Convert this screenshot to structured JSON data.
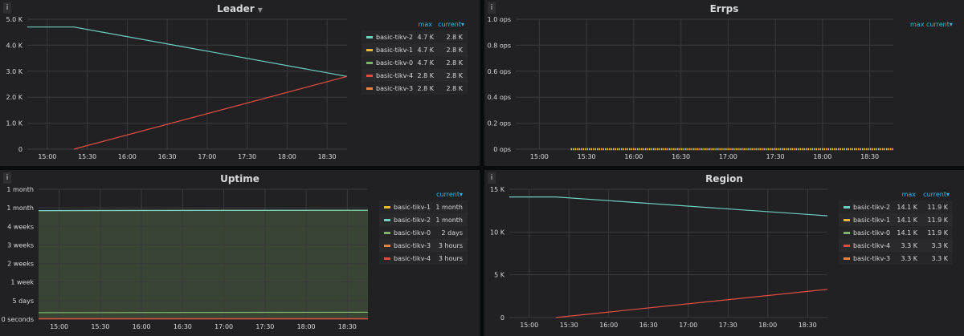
{
  "colors": {
    "tikv2": "#6ed0c0",
    "tikv1": "#eab839",
    "tikv0": "#7eb26d",
    "tikv4": "#e24d42",
    "tikv3": "#ef843c"
  },
  "legend_headers": {
    "max": "max",
    "current": "current▾"
  },
  "panels": {
    "leader": {
      "title": "Leader",
      "legend": [
        {
          "name": "basic-tikv-2",
          "max": "4.7 K",
          "current": "2.8 K",
          "color": "#6ed0c0"
        },
        {
          "name": "basic-tikv-1",
          "max": "4.7 K",
          "current": "2.8 K",
          "color": "#eab839"
        },
        {
          "name": "basic-tikv-0",
          "max": "4.7 K",
          "current": "2.8 K",
          "color": "#7eb26d"
        },
        {
          "name": "basic-tikv-4",
          "max": "2.8 K",
          "current": "2.8 K",
          "color": "#e24d42"
        },
        {
          "name": "basic-tikv-3",
          "max": "2.8 K",
          "current": "2.8 K",
          "color": "#ef843c"
        }
      ]
    },
    "errps": {
      "title": "Errps"
    },
    "uptime": {
      "title": "Uptime",
      "legend": [
        {
          "name": "basic-tikv-1",
          "current": "1 month",
          "color": "#eab839"
        },
        {
          "name": "basic-tikv-2",
          "current": "1 month",
          "color": "#6ed0c0"
        },
        {
          "name": "basic-tikv-0",
          "current": "2 days",
          "color": "#7eb26d"
        },
        {
          "name": "basic-tikv-3",
          "current": "3 hours",
          "color": "#ef843c"
        },
        {
          "name": "basic-tikv-4",
          "current": "3 hours",
          "color": "#e24d42"
        }
      ]
    },
    "region": {
      "title": "Region",
      "legend": [
        {
          "name": "basic-tikv-2",
          "max": "14.1 K",
          "current": "11.9 K",
          "color": "#6ed0c0"
        },
        {
          "name": "basic-tikv-1",
          "max": "14.1 K",
          "current": "11.9 K",
          "color": "#eab839"
        },
        {
          "name": "basic-tikv-0",
          "max": "14.1 K",
          "current": "11.9 K",
          "color": "#7eb26d"
        },
        {
          "name": "basic-tikv-4",
          "max": "3.3 K",
          "current": "3.3 K",
          "color": "#e24d42"
        },
        {
          "name": "basic-tikv-3",
          "max": "3.3 K",
          "current": "3.3 K",
          "color": "#ef843c"
        }
      ]
    }
  },
  "chart_data": [
    {
      "id": "leader",
      "type": "line",
      "title": "Leader",
      "x_ticks": [
        "15:00",
        "15:30",
        "16:00",
        "16:30",
        "17:00",
        "17:30",
        "18:00",
        "18:30"
      ],
      "x_range": [
        "14:45",
        "18:45"
      ],
      "y_ticks": [
        "0",
        "1.0 K",
        "2.0 K",
        "3.0 K",
        "4.0 K",
        "5.0 K"
      ],
      "ylim": [
        0,
        5000
      ],
      "series": [
        {
          "name": "basic-tikv-2",
          "color": "#6ed0c0",
          "points": [
            [
              "14:45",
              4700
            ],
            [
              "15:20",
              4700
            ],
            [
              "18:45",
              2800
            ]
          ]
        },
        {
          "name": "basic-tikv-4",
          "color": "#e24d42",
          "points": [
            [
              "15:20",
              0
            ],
            [
              "18:45",
              2800
            ]
          ]
        }
      ]
    },
    {
      "id": "errps",
      "type": "line",
      "title": "Errps",
      "x_ticks": [
        "15:00",
        "15:30",
        "16:00",
        "16:30",
        "17:00",
        "17:30",
        "18:00",
        "18:30"
      ],
      "x_range": [
        "14:45",
        "18:45"
      ],
      "y_ticks": [
        "0 ops",
        "0.2 ops",
        "0.4 ops",
        "0.6 ops",
        "0.8 ops",
        "1.0 ops"
      ],
      "ylim": [
        0,
        1
      ],
      "series": [
        {
          "name": "basic-tikv-1",
          "color": "#eab839",
          "points": [
            [
              "15:20",
              0
            ],
            [
              "18:45",
              0
            ]
          ]
        }
      ]
    },
    {
      "id": "uptime",
      "type": "area",
      "title": "Uptime",
      "x_ticks": [
        "15:00",
        "15:30",
        "16:00",
        "16:30",
        "17:00",
        "17:30",
        "18:00",
        "18:30"
      ],
      "x_range": [
        "14:45",
        "18:45"
      ],
      "y_ticks": [
        "0 seconds",
        "5 days",
        "1 week",
        "2 weeks",
        "3 weeks",
        "4 weeks",
        "1 month",
        "1 month"
      ],
      "ylim": [
        0,
        7
      ],
      "series": [
        {
          "name": "basic-tikv-1",
          "color": "#eab839",
          "points": [
            [
              "14:45",
              5.85
            ],
            [
              "18:45",
              5.87
            ]
          ]
        },
        {
          "name": "basic-tikv-2",
          "color": "#6ed0c0",
          "points": [
            [
              "14:45",
              5.85
            ],
            [
              "18:45",
              5.87
            ]
          ]
        },
        {
          "name": "basic-tikv-0",
          "color": "#7eb26d",
          "points": [
            [
              "14:45",
              0.35
            ],
            [
              "18:45",
              0.37
            ]
          ]
        },
        {
          "name": "basic-tikv-3",
          "color": "#ef843c",
          "points": [
            [
              "14:45",
              0.02
            ],
            [
              "18:45",
              0.02
            ]
          ]
        },
        {
          "name": "basic-tikv-4",
          "color": "#e24d42",
          "points": [
            [
              "14:45",
              0.02
            ],
            [
              "18:45",
              0.02
            ]
          ]
        }
      ]
    },
    {
      "id": "region",
      "type": "line",
      "title": "Region",
      "x_ticks": [
        "15:00",
        "15:30",
        "16:00",
        "16:30",
        "17:00",
        "17:30",
        "18:00",
        "18:30"
      ],
      "x_range": [
        "14:45",
        "18:45"
      ],
      "y_ticks": [
        "0",
        "5 K",
        "10 K",
        "15 K"
      ],
      "ylim": [
        0,
        15000
      ],
      "series": [
        {
          "name": "basic-tikv-2",
          "color": "#6ed0c0",
          "points": [
            [
              "14:45",
              14100
            ],
            [
              "15:20",
              14100
            ],
            [
              "18:45",
              11900
            ]
          ]
        },
        {
          "name": "basic-tikv-4",
          "color": "#e24d42",
          "points": [
            [
              "15:20",
              0
            ],
            [
              "18:45",
              3300
            ]
          ]
        }
      ]
    }
  ]
}
